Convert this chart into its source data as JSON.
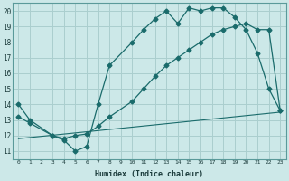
{
  "xlabel": "Humidex (Indice chaleur)",
  "bg_color": "#cce8e8",
  "grid_color": "#aacece",
  "line_color": "#1a6b6b",
  "xlim": [
    -0.5,
    23.5
  ],
  "ylim": [
    10.5,
    20.5
  ],
  "yticks": [
    11,
    12,
    13,
    14,
    15,
    16,
    17,
    18,
    19,
    20
  ],
  "xticks": [
    0,
    1,
    2,
    3,
    4,
    5,
    6,
    7,
    8,
    9,
    10,
    11,
    12,
    13,
    14,
    15,
    16,
    17,
    18,
    19,
    20,
    21,
    22,
    23
  ],
  "line1_x": [
    0,
    1,
    3,
    4,
    5,
    6,
    7,
    8,
    10,
    11,
    12,
    13,
    14,
    15,
    16,
    17,
    18,
    19,
    20,
    21,
    22,
    23
  ],
  "line1_y": [
    14,
    13,
    12,
    11.7,
    11,
    11.3,
    14,
    16.5,
    18,
    18.8,
    19.5,
    20,
    19.2,
    20.2,
    20,
    20.2,
    20.2,
    19.6,
    18.8,
    17.3,
    15,
    13.6
  ],
  "line2_x": [
    0,
    23
  ],
  "line2_y": [
    11.8,
    13.5
  ],
  "line3_x": [
    0,
    1,
    3,
    4,
    5,
    6,
    7,
    8,
    10,
    11,
    12,
    13,
    14,
    15,
    16,
    17,
    18,
    19,
    20,
    21,
    22,
    23
  ],
  "line3_y": [
    13.2,
    12.8,
    12.0,
    11.8,
    12.0,
    12.1,
    12.6,
    13.2,
    14.2,
    15.0,
    15.8,
    16.5,
    17.0,
    17.5,
    18.0,
    18.5,
    18.8,
    19.0,
    19.2,
    18.8,
    18.8,
    13.6
  ]
}
